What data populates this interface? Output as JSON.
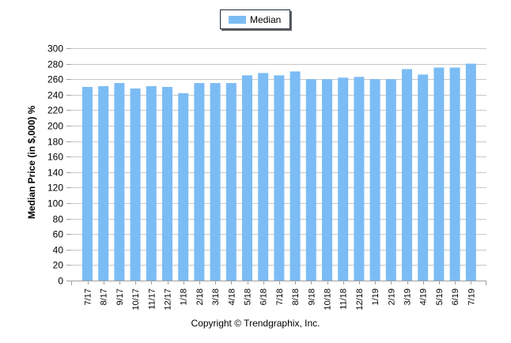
{
  "chart_data": {
    "type": "bar",
    "title": "",
    "xlabel": "",
    "ylabel": "Median Price (in $,000) %",
    "ylim": [
      0,
      300
    ],
    "yticks": [
      0,
      20,
      40,
      60,
      80,
      100,
      120,
      140,
      160,
      180,
      200,
      220,
      240,
      260,
      280,
      300
    ],
    "grid": true,
    "legend_position": "top",
    "categories": [
      "7/17",
      "8/17",
      "9/17",
      "10/17",
      "11/17",
      "12/17",
      "1/18",
      "2/18",
      "3/18",
      "4/18",
      "5/18",
      "6/18",
      "7/18",
      "8/18",
      "9/18",
      "10/18",
      "11/18",
      "12/18",
      "1/19",
      "2/19",
      "3/19",
      "4/19",
      "5/19",
      "6/19",
      "7/19"
    ],
    "series": [
      {
        "name": "Median",
        "color": "#7cbcf4",
        "values": [
          250,
          251,
          255,
          248,
          251,
          250,
          242,
          255,
          255,
          255,
          265,
          268,
          265,
          270,
          260,
          260,
          262,
          263,
          260,
          260,
          273,
          266,
          275,
          275,
          280
        ]
      }
    ]
  },
  "legend": {
    "label": "Median",
    "color": "#7cbcf4"
  },
  "axis": {
    "ylabel": "Median Price (in $,000) %"
  },
  "footer": {
    "copyright": "Copyright © Trendgraphix, Inc."
  },
  "colors": {
    "bar": "#7cbcf4",
    "grid": "#c8c8c8",
    "axis": "#a0a0a0"
  }
}
